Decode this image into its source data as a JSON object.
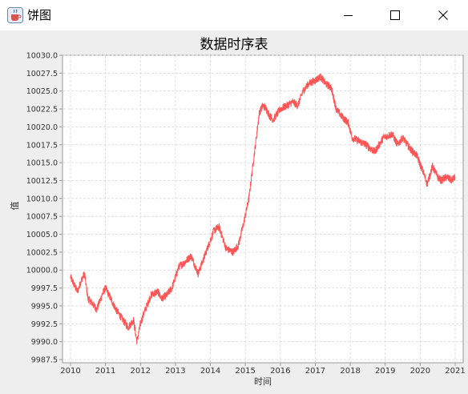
{
  "window": {
    "title": "饼图",
    "icon": "java-cup-icon",
    "controls": [
      "minimize-icon",
      "maximize-icon",
      "close-icon"
    ]
  },
  "chart_data": {
    "type": "line",
    "title": "数据时序表",
    "xlabel": "时间",
    "ylabel": "值",
    "x_ticks": [
      "2010",
      "2011",
      "2012",
      "2013",
      "2014",
      "2015",
      "2016",
      "2017",
      "2018",
      "2019",
      "2020",
      "2021"
    ],
    "y_ticks": [
      "9987.5",
      "9990.0",
      "9992.5",
      "9995.0",
      "9997.5",
      "10000.0",
      "10002.5",
      "10005.0",
      "10007.5",
      "10010.0",
      "10012.5",
      "10015.0",
      "10017.5",
      "10020.0",
      "10022.5",
      "10025.0",
      "10027.5",
      "10030.0"
    ],
    "xlim": [
      2010.0,
      2021.0
    ],
    "ylim": [
      9987.5,
      10030.0
    ],
    "grid": true,
    "colors": {
      "line": "#ff5555",
      "plot_bg": "#ffffff",
      "panel_bg": "#eeeeee",
      "grid": "#d8d8d8"
    },
    "series": [
      {
        "x": [
          2010.0,
          2010.2,
          2010.3,
          2010.4,
          2010.5,
          2010.6,
          2010.75,
          2010.9,
          2011.0,
          2011.1,
          2011.3,
          2011.5,
          2011.65,
          2011.8,
          2011.9,
          2012.0,
          2012.1,
          2012.3,
          2012.5,
          2012.6,
          2012.75,
          2012.9,
          2013.1,
          2013.25,
          2013.45,
          2013.65,
          2013.8,
          2013.95,
          2014.1,
          2014.25,
          2014.45,
          2014.65,
          2014.8,
          2014.95,
          2015.1,
          2015.25,
          2015.4,
          2015.5,
          2015.6,
          2015.7,
          2015.8,
          2016.0,
          2016.2,
          2016.35,
          2016.5,
          2016.65,
          2016.8,
          2017.0,
          2017.15,
          2017.3,
          2017.45,
          2017.6,
          2017.75,
          2017.95,
          2018.05,
          2018.25,
          2018.45,
          2018.7,
          2018.95,
          2019.2,
          2019.35,
          2019.5,
          2019.7,
          2019.9,
          2020.1,
          2020.2,
          2020.35,
          2020.5,
          2020.6,
          2020.75,
          2020.9,
          2021.0
        ],
        "y": [
          9999.0,
          9997.0,
          9998.5,
          9999.5,
          9996.0,
          9995.5,
          9994.5,
          9996.5,
          9997.5,
          9996.5,
          9994.5,
          9993.0,
          9992.0,
          9993.0,
          9990.0,
          9992.5,
          9994.0,
          9996.5,
          9997.0,
          9996.0,
          9996.5,
          9997.5,
          10000.5,
          10001.0,
          10002.0,
          9999.5,
          10001.5,
          10003.5,
          10005.5,
          10006.0,
          10003.0,
          10002.5,
          10003.5,
          10006.5,
          10010.0,
          10016.0,
          10022.0,
          10023.0,
          10022.5,
          10021.5,
          10021.0,
          10022.5,
          10023.0,
          10023.5,
          10023.0,
          10025.0,
          10026.0,
          10026.5,
          10027.0,
          10026.0,
          10025.5,
          10022.5,
          10021.5,
          10020.5,
          10018.5,
          10018.0,
          10017.5,
          10016.5,
          10018.5,
          10019.0,
          10017.5,
          10018.5,
          10017.0,
          10016.0,
          10013.5,
          10012.0,
          10014.5,
          10013.0,
          10012.5,
          10013.0,
          10012.5,
          10013.0
        ]
      }
    ]
  }
}
